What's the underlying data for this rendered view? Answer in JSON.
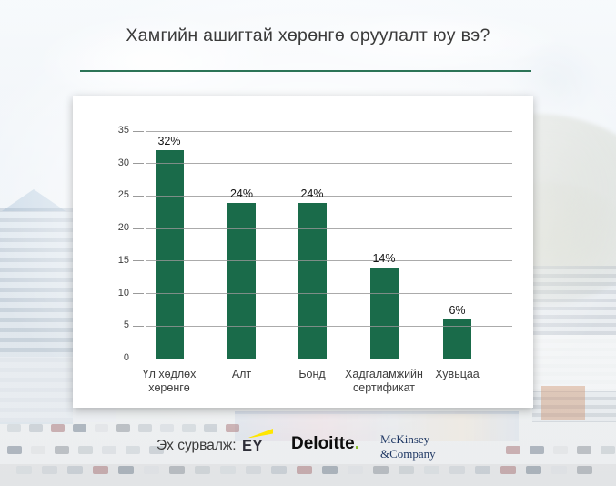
{
  "page": {
    "title": "Хамгийн ашигтай хөрөнгө оруулалт юу вэ?"
  },
  "chart_data": {
    "type": "bar",
    "title": "Хамгийн ашигтай хөрөнгө оруулалт юу вэ?",
    "categories": [
      "Үл хөдлөх хөрөнгө",
      "Алт",
      "Бонд",
      "Хадгаламжийн сертификат",
      "Хувьцаа"
    ],
    "values": [
      32,
      24,
      24,
      14,
      6
    ],
    "data_labels": [
      "32%",
      "24%",
      "24%",
      "14%",
      "6%"
    ],
    "yticks": [
      0,
      5,
      10,
      15,
      20,
      25,
      30,
      35
    ],
    "ylim": [
      0,
      35
    ],
    "grid": true,
    "legend": false,
    "xlabel": "",
    "ylabel": "",
    "bar_color": "#1A6B4A",
    "gridline_color": "#969696",
    "axis_text_color": "#404040",
    "value_label_color": "#151515"
  },
  "source": {
    "label": "Эх сурвалж:",
    "logos": {
      "ey": {
        "text": "EY",
        "beam_color": "#FFE600",
        "text_color": "#2E2E38"
      },
      "deloitte": {
        "text": "Deloitte",
        "dot": ".",
        "text_color": "#0E0E0E",
        "dot_color": "#86BC25"
      },
      "mckinsey": {
        "line1": "McKinsey",
        "line2": "&Company",
        "text_color": "#1F3864"
      }
    }
  },
  "theme": {
    "accent_green": "#2C7457",
    "card_background": "#FFFFFF"
  }
}
